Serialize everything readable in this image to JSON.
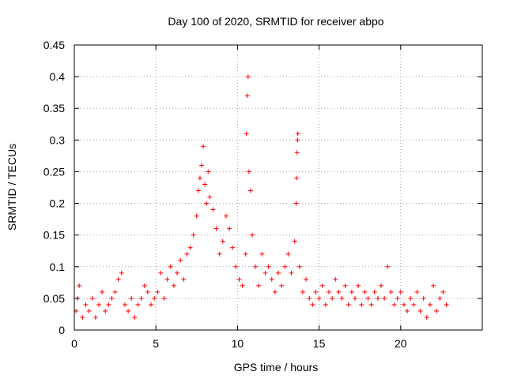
{
  "chart_data": {
    "type": "scatter",
    "title": "Day 100 of 2020, SRMTID for receiver abpo",
    "xlabel": "GPS time / hours",
    "ylabel": "SRMTID / TECUs",
    "xlim": [
      0,
      25
    ],
    "ylim": [
      0,
      0.45
    ],
    "xticks": [
      0,
      5,
      10,
      15,
      20
    ],
    "yticks": [
      0,
      0.05,
      0.1,
      0.15,
      0.2,
      0.25,
      0.3,
      0.35,
      0.4,
      0.45
    ],
    "xtick_labels": [
      "0",
      "5",
      "10",
      "15",
      "20"
    ],
    "ytick_labels": [
      "0",
      "0.05",
      "0.1",
      "0.15",
      "0.2",
      "0.25",
      "0.3",
      "0.35",
      "0.4",
      "0.45"
    ],
    "grid": true,
    "marker": "+",
    "color": "#ff0000",
    "series": [
      {
        "name": "SRMTID",
        "points": [
          [
            0.1,
            0.03
          ],
          [
            0.2,
            0.05
          ],
          [
            0.3,
            0.07
          ],
          [
            0.5,
            0.02
          ],
          [
            0.7,
            0.04
          ],
          [
            0.9,
            0.03
          ],
          [
            1.1,
            0.05
          ],
          [
            1.3,
            0.02
          ],
          [
            1.5,
            0.04
          ],
          [
            1.7,
            0.06
          ],
          [
            1.9,
            0.03
          ],
          [
            2.1,
            0.04
          ],
          [
            2.3,
            0.05
          ],
          [
            2.5,
            0.06
          ],
          [
            2.7,
            0.08
          ],
          [
            2.9,
            0.09
          ],
          [
            3.1,
            0.04
          ],
          [
            3.3,
            0.03
          ],
          [
            3.5,
            0.05
          ],
          [
            3.7,
            0.02
          ],
          [
            3.9,
            0.04
          ],
          [
            4.1,
            0.05
          ],
          [
            4.3,
            0.07
          ],
          [
            4.5,
            0.06
          ],
          [
            4.7,
            0.04
          ],
          [
            4.9,
            0.05
          ],
          [
            5.1,
            0.06
          ],
          [
            5.3,
            0.09
          ],
          [
            5.5,
            0.05
          ],
          [
            5.7,
            0.08
          ],
          [
            5.9,
            0.1
          ],
          [
            6.1,
            0.07
          ],
          [
            6.3,
            0.09
          ],
          [
            6.5,
            0.11
          ],
          [
            6.7,
            0.08
          ],
          [
            6.9,
            0.12
          ],
          [
            7.1,
            0.13
          ],
          [
            7.3,
            0.15
          ],
          [
            7.5,
            0.18
          ],
          [
            7.6,
            0.22
          ],
          [
            7.7,
            0.24
          ],
          [
            7.8,
            0.26
          ],
          [
            7.9,
            0.29
          ],
          [
            8.0,
            0.23
          ],
          [
            8.1,
            0.2
          ],
          [
            8.2,
            0.25
          ],
          [
            8.3,
            0.21
          ],
          [
            8.5,
            0.19
          ],
          [
            8.7,
            0.16
          ],
          [
            8.9,
            0.12
          ],
          [
            9.1,
            0.14
          ],
          [
            9.3,
            0.18
          ],
          [
            9.5,
            0.16
          ],
          [
            9.7,
            0.13
          ],
          [
            9.9,
            0.1
          ],
          [
            10.1,
            0.08
          ],
          [
            10.3,
            0.07
          ],
          [
            10.5,
            0.12
          ],
          [
            10.55,
            0.31
          ],
          [
            10.6,
            0.37
          ],
          [
            10.65,
            0.4
          ],
          [
            10.7,
            0.25
          ],
          [
            10.8,
            0.22
          ],
          [
            10.9,
            0.15
          ],
          [
            11.1,
            0.1
          ],
          [
            11.3,
            0.07
          ],
          [
            11.5,
            0.12
          ],
          [
            11.7,
            0.09
          ],
          [
            11.9,
            0.1
          ],
          [
            12.1,
            0.08
          ],
          [
            12.3,
            0.06
          ],
          [
            12.5,
            0.09
          ],
          [
            12.7,
            0.07
          ],
          [
            12.9,
            0.1
          ],
          [
            13.1,
            0.12
          ],
          [
            13.3,
            0.09
          ],
          [
            13.5,
            0.14
          ],
          [
            13.6,
            0.2
          ],
          [
            13.62,
            0.24
          ],
          [
            13.65,
            0.28
          ],
          [
            13.68,
            0.3
          ],
          [
            13.7,
            0.31
          ],
          [
            13.8,
            0.1
          ],
          [
            14.0,
            0.06
          ],
          [
            14.2,
            0.08
          ],
          [
            14.4,
            0.05
          ],
          [
            14.6,
            0.04
          ],
          [
            14.8,
            0.06
          ],
          [
            15.0,
            0.05
          ],
          [
            15.2,
            0.07
          ],
          [
            15.4,
            0.04
          ],
          [
            15.6,
            0.06
          ],
          [
            15.8,
            0.05
          ],
          [
            16.0,
            0.08
          ],
          [
            16.2,
            0.06
          ],
          [
            16.4,
            0.05
          ],
          [
            16.6,
            0.07
          ],
          [
            16.8,
            0.04
          ],
          [
            17.0,
            0.06
          ],
          [
            17.2,
            0.05
          ],
          [
            17.4,
            0.07
          ],
          [
            17.6,
            0.04
          ],
          [
            17.8,
            0.06
          ],
          [
            18.0,
            0.05
          ],
          [
            18.2,
            0.04
          ],
          [
            18.4,
            0.06
          ],
          [
            18.6,
            0.05
          ],
          [
            18.8,
            0.07
          ],
          [
            19.0,
            0.05
          ],
          [
            19.2,
            0.1
          ],
          [
            19.4,
            0.06
          ],
          [
            19.6,
            0.04
          ],
          [
            19.8,
            0.05
          ],
          [
            20.0,
            0.06
          ],
          [
            20.2,
            0.04
          ],
          [
            20.4,
            0.03
          ],
          [
            20.6,
            0.05
          ],
          [
            20.8,
            0.04
          ],
          [
            21.0,
            0.06
          ],
          [
            21.2,
            0.03
          ],
          [
            21.4,
            0.05
          ],
          [
            21.6,
            0.02
          ],
          [
            21.8,
            0.04
          ],
          [
            22.0,
            0.07
          ],
          [
            22.2,
            0.03
          ],
          [
            22.4,
            0.05
          ],
          [
            22.6,
            0.06
          ],
          [
            22.8,
            0.04
          ]
        ]
      }
    ]
  }
}
